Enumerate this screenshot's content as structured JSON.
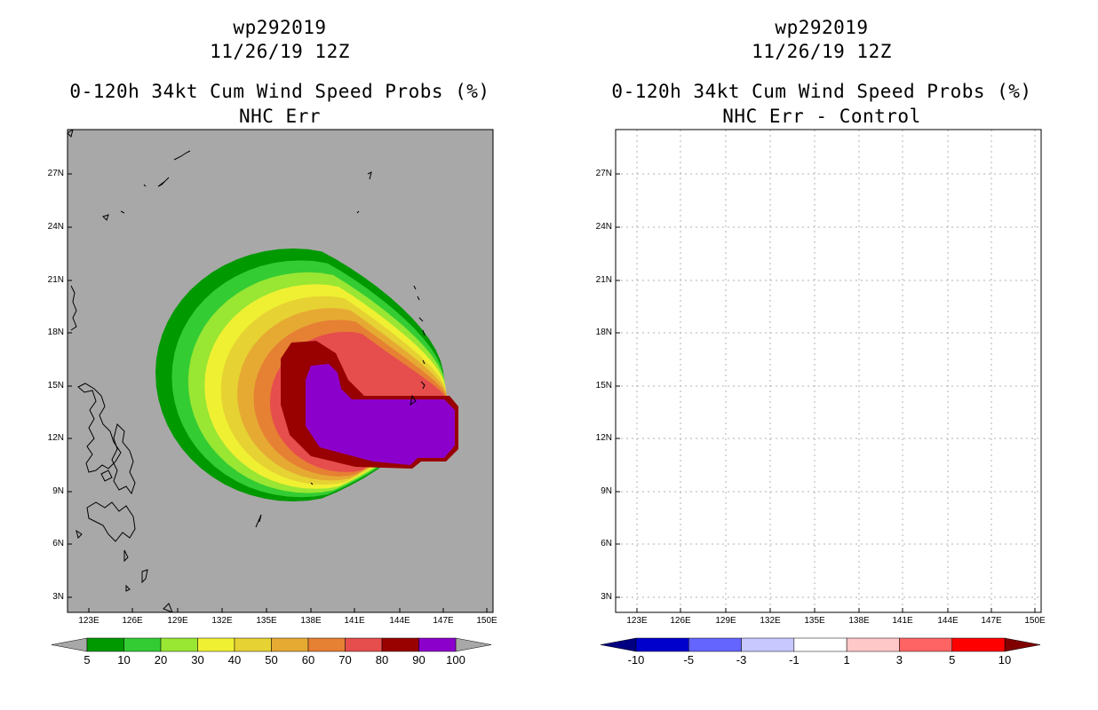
{
  "panels": [
    {
      "id": "left",
      "storm_id": "wp292019",
      "date": "11/26/19 12Z",
      "product": "0-120h 34kt Cum Wind Speed Probs (%)",
      "subtitle": "NHC Err",
      "map_background": "#a8a8a8",
      "colorbar": {
        "labels": [
          "5",
          "10",
          "20",
          "30",
          "40",
          "50",
          "60",
          "70",
          "80",
          "90",
          "100"
        ],
        "colors": [
          "#009900",
          "#33cc33",
          "#99e633",
          "#f0f033",
          "#e6d233",
          "#e6aa33",
          "#e68033",
          "#e64d4d",
          "#990000",
          "#8c00cc"
        ],
        "extend_left": "#a8a8a8",
        "extend_right": "#a8a8a8"
      },
      "probability_levels": [
        {
          "min_pct": 5,
          "color": "#009900"
        },
        {
          "min_pct": 10,
          "color": "#33cc33"
        },
        {
          "min_pct": 20,
          "color": "#99e633"
        },
        {
          "min_pct": 30,
          "color": "#f0f033"
        },
        {
          "min_pct": 40,
          "color": "#e6d233"
        },
        {
          "min_pct": 50,
          "color": "#e6aa33"
        },
        {
          "min_pct": 60,
          "color": "#e68033"
        },
        {
          "min_pct": 70,
          "color": "#e64d4d"
        },
        {
          "min_pct": 80,
          "color": "#990000"
        },
        {
          "min_pct": 90,
          "color": "#8c00cc"
        }
      ]
    },
    {
      "id": "right",
      "storm_id": "wp292019",
      "date": "11/26/19 12Z",
      "product": "0-120h 34kt Cum Wind Speed Probs (%)",
      "subtitle": "NHC Err - Control",
      "map_background": "#ffffff",
      "colorbar": {
        "labels": [
          "-10",
          "-5",
          "-3",
          "-1",
          "1",
          "3",
          "5",
          "10"
        ],
        "colors": [
          "#0000cc",
          "#6464ff",
          "#c8c8ff",
          "#ffffff",
          "#ffc8c8",
          "#ff6464",
          "#ff0000"
        ],
        "extend_left": "#000080",
        "extend_right": "#800000"
      }
    }
  ],
  "map": {
    "lat_ticks": [
      "27N",
      "24N",
      "21N",
      "18N",
      "15N",
      "12N",
      "9N",
      "6N",
      "3N"
    ],
    "lon_ticks": [
      "123E",
      "126E",
      "129E",
      "132E",
      "135E",
      "138E",
      "141E",
      "144E",
      "147E",
      "150E"
    ]
  }
}
